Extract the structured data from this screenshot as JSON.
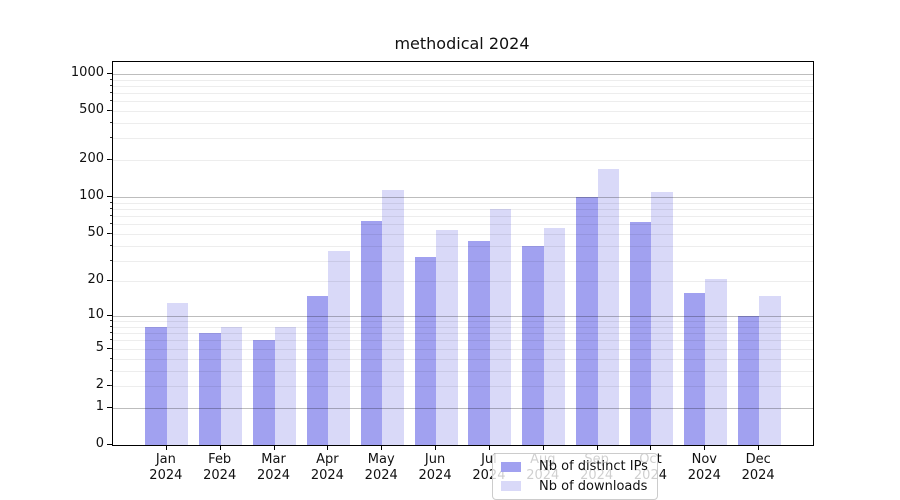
{
  "title": "methodical 2024",
  "chart_data": {
    "type": "bar",
    "title": "methodical 2024",
    "categories": [
      "Jan",
      "Feb",
      "Mar",
      "Apr",
      "May",
      "Jun",
      "Jul",
      "Aug",
      "Sep",
      "Oct",
      "Nov",
      "Dec"
    ],
    "year": "2024",
    "series": [
      {
        "name": "Nb of distinct IPs",
        "color": "#a1a1f0",
        "values": [
          8,
          7,
          6,
          15,
          64,
          32,
          44,
          40,
          100,
          63,
          16,
          10
        ]
      },
      {
        "name": "Nb of downloads",
        "color": "#d9d9f8",
        "values": [
          13,
          8,
          8,
          36,
          115,
          54,
          80,
          56,
          170,
          110,
          21,
          15
        ]
      }
    ],
    "xlabel": "",
    "ylabel": "",
    "yscale": "log1p",
    "yticks": [
      0,
      1,
      2,
      5,
      10,
      20,
      50,
      100,
      200,
      500,
      1000
    ],
    "ylim": [
      0,
      1250
    ],
    "grid": true,
    "legend_position": "lower center"
  }
}
